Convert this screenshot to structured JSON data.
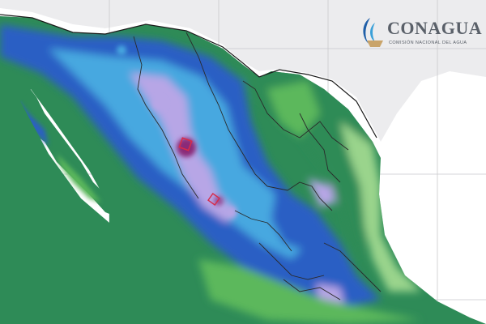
{
  "logo": {
    "title": "CONAGUA",
    "subtitle": "COMISIÓN NACIONAL DEL AGUA",
    "text_color": "#5a6069",
    "emblem_colors": [
      "#1f5fa8",
      "#3aa0d8",
      "#c9a46a"
    ]
  },
  "palette": {
    "ocean": "#ffffff",
    "land_usa": "#ececee",
    "graticule": "#c9c9cc",
    "border": "#1a1a1a",
    "state_line": "#2a2a2a",
    "rain_low": "#9ad48c",
    "rain_light": "#5cb85c",
    "rain_moderate": "#2e8b57",
    "rain_heavy": "#2c5fc4",
    "rain_very_heavy": "#46a8e0",
    "rain_intense": "#b7a6e6",
    "rain_extreme": "#8a2a78",
    "highlight_box": "#d62c4a"
  }
}
